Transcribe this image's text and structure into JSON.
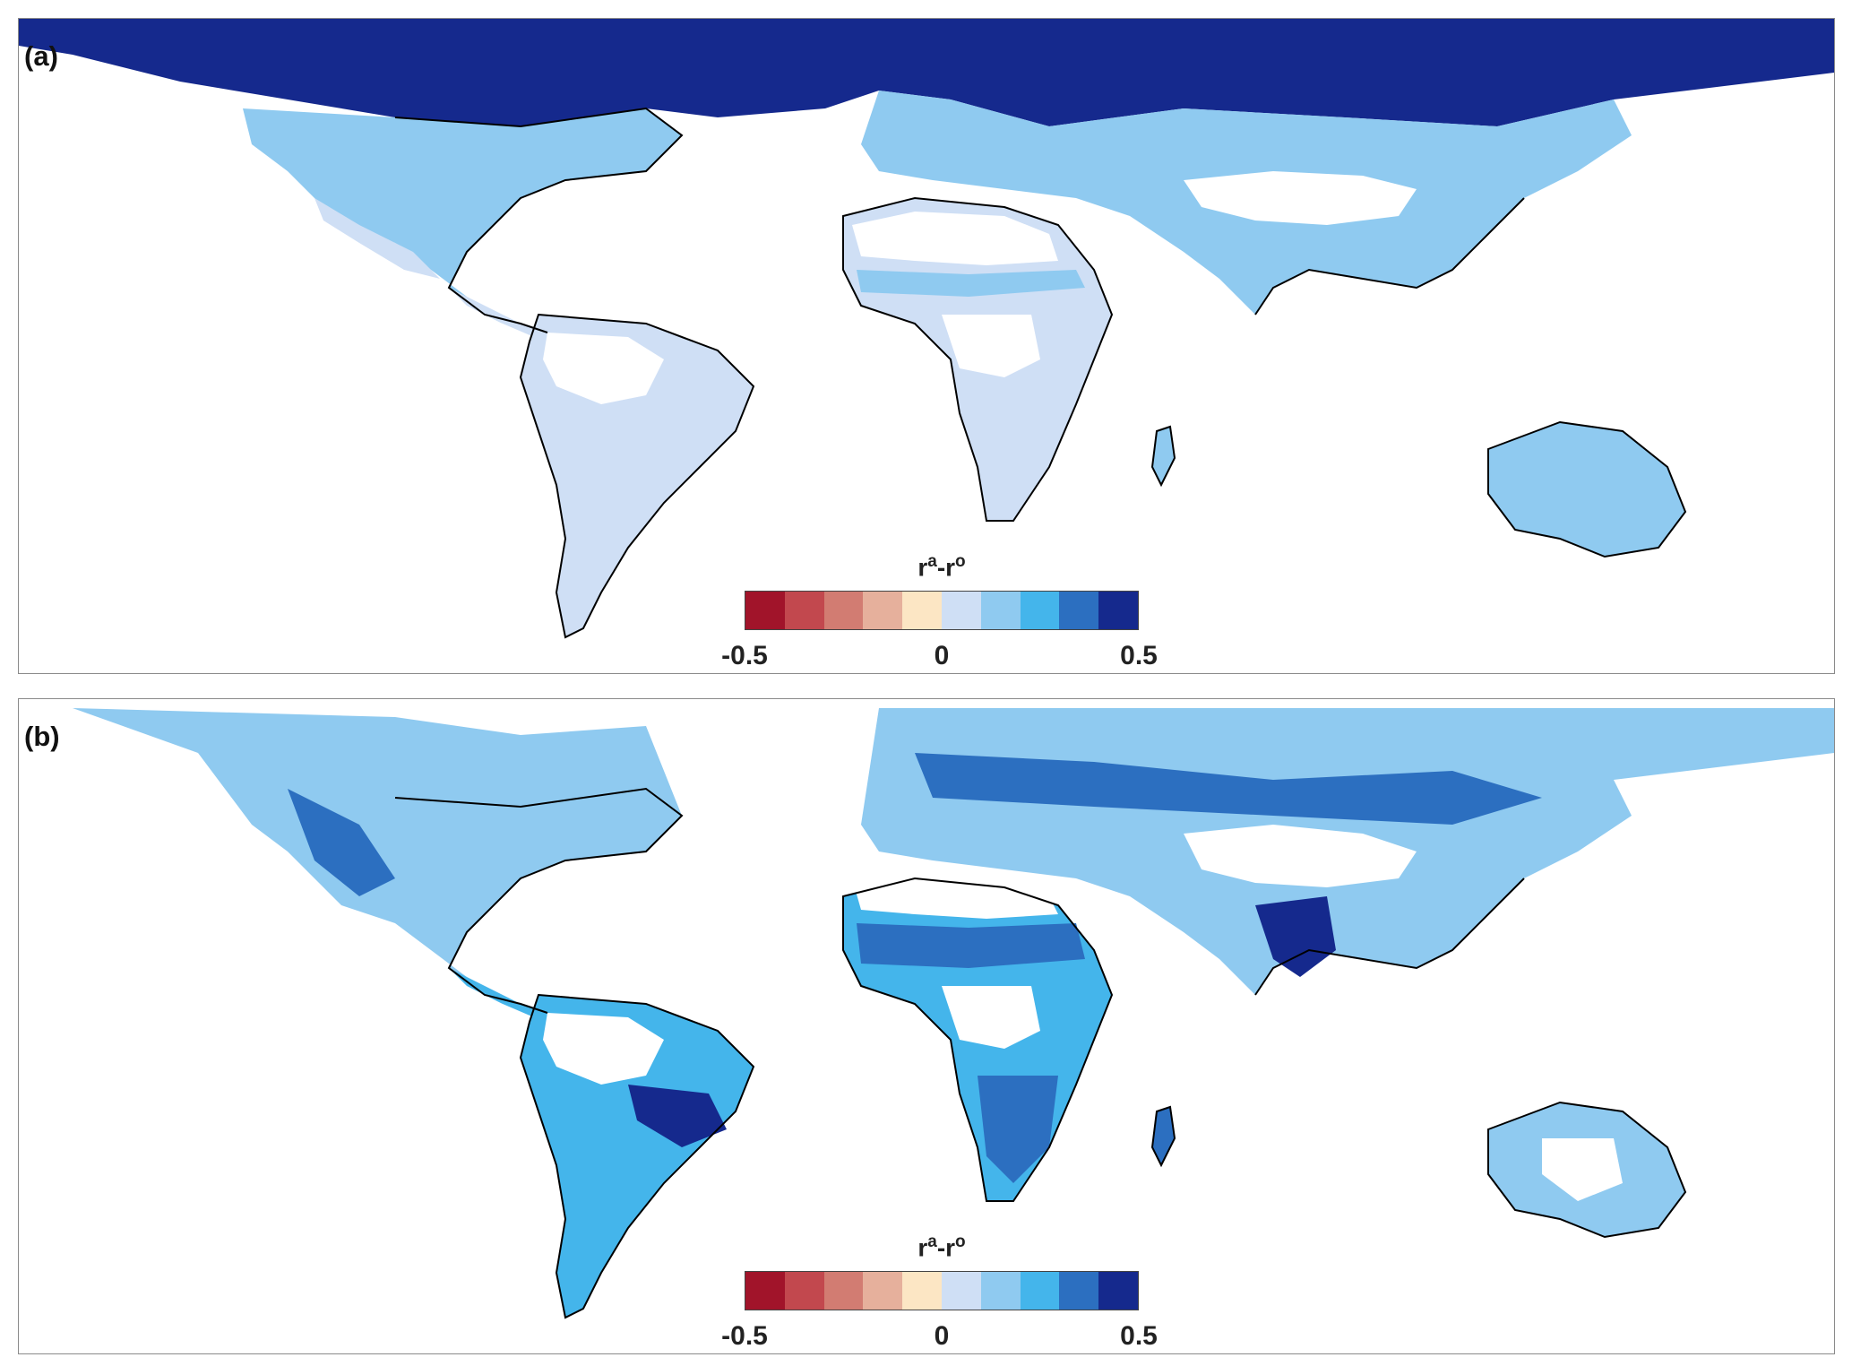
{
  "panels": [
    {
      "id": "a",
      "label": "(a)",
      "colorbar": {
        "title_base": "r",
        "title_sup1": "a",
        "title_mid": "-r",
        "title_sup2": "o",
        "ticks": [
          "-0.5",
          "0",
          "0.5"
        ]
      }
    },
    {
      "id": "b",
      "label": "(b)",
      "colorbar": {
        "title_base": "r",
        "title_sup1": "a",
        "title_mid": "-r",
        "title_sup2": "o",
        "ticks": [
          "-0.5",
          "0",
          "0.5"
        ]
      }
    }
  ],
  "colorscale": {
    "min": -0.5,
    "max": 0.5,
    "colors": [
      "#a1142a",
      "#c2484e",
      "#d27c72",
      "#e6b09c",
      "#fce6c4",
      "#cfdff5",
      "#8fcaf0",
      "#44b5eb",
      "#2c6fc0",
      "#15298d"
    ]
  },
  "colors": {
    "coastline": "#000000",
    "no_data": "#ffffff",
    "frame": "#8a8a8a"
  }
}
